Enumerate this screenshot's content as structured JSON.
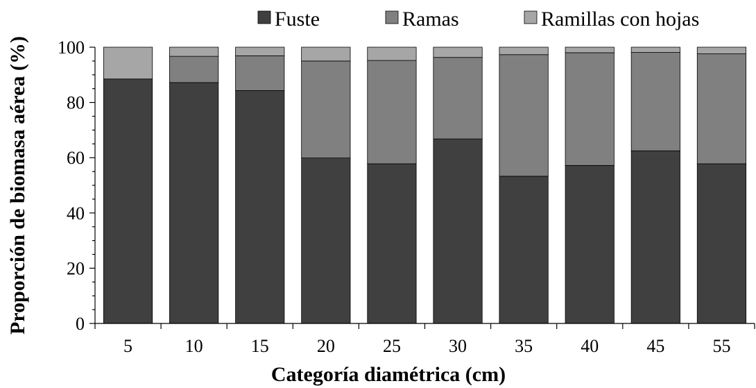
{
  "chart_data": {
    "type": "bar",
    "stacked": true,
    "xlabel": "Categoría diamétrica (cm)",
    "ylabel": "Proporción de biomasa aérea (%)",
    "ylim": [
      0,
      100
    ],
    "yticks": [
      0,
      20,
      40,
      60,
      80,
      100
    ],
    "grid": false,
    "legend_position": "top",
    "categories": [
      "5",
      "10",
      "15",
      "20",
      "25",
      "30",
      "35",
      "40",
      "45",
      "55"
    ],
    "series": [
      {
        "name": "Fuste",
        "color": "#404040",
        "values": [
          88.5,
          87.2,
          84.3,
          59.9,
          57.8,
          66.8,
          53.3,
          57.2,
          62.5,
          57.8
        ]
      },
      {
        "name": "Ramas",
        "color": "#808080",
        "values": [
          0.0,
          9.5,
          12.6,
          35.1,
          37.4,
          29.5,
          44.0,
          40.8,
          35.6,
          39.8
        ]
      },
      {
        "name": "Ramillas con hojas",
        "color": "#a6a6a6",
        "values": [
          11.5,
          3.3,
          3.1,
          5.0,
          4.8,
          3.7,
          2.7,
          2.0,
          1.9,
          2.4
        ]
      }
    ]
  }
}
